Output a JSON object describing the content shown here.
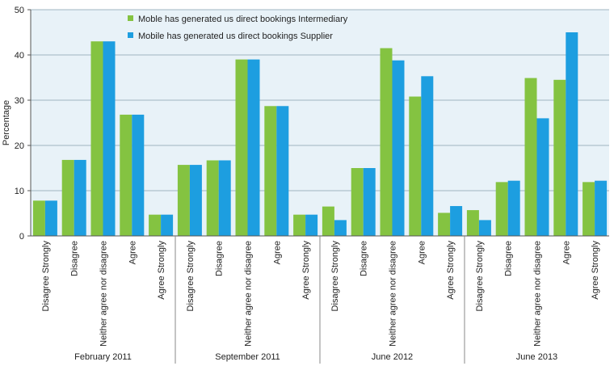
{
  "chart_data": {
    "type": "bar",
    "ylabel": "Percentage",
    "ylim": [
      0,
      50
    ],
    "yticks": [
      0,
      10,
      20,
      30,
      40,
      50
    ],
    "grid": true,
    "legend_position": "top",
    "groups": [
      {
        "label": "February 2011",
        "categories": [
          "Disagree Strongly",
          "Disagree",
          "Neither agree nor disagree",
          "Agree",
          "Agree Strongly"
        ]
      },
      {
        "label": "September 2011",
        "categories": [
          "Disagree Strongly",
          "Disagree",
          "Neither agree nor disagree",
          "Agree",
          "Agree Strongly"
        ]
      },
      {
        "label": "June 2012",
        "categories": [
          "Disagree Strongly",
          "Disagree",
          "Neither agree nor disagree",
          "Agree",
          "Agree Strongly"
        ]
      },
      {
        "label": "June 2013",
        "categories": [
          "Disagree Strongly",
          "Disagree",
          "Neither agree nor disagree",
          "Agree",
          "Agree Strongly"
        ]
      }
    ],
    "series": [
      {
        "name": "Moble has generated us direct bookings Intermediary",
        "color": "#84c341",
        "values": [
          7.8,
          16.8,
          43,
          26.8,
          4.7,
          15.7,
          16.7,
          39,
          28.7,
          4.7,
          6.5,
          15,
          41.5,
          30.8,
          5.1,
          5.7,
          11.9,
          34.9,
          34.5,
          11.9
        ]
      },
      {
        "name": "Mobile has generated us direct bookings Supplier",
        "color": "#1d9ee0",
        "values": [
          7.8,
          16.8,
          43,
          26.8,
          4.7,
          15.7,
          16.7,
          39,
          28.7,
          4.7,
          3.5,
          15,
          38.8,
          35.3,
          6.6,
          3.5,
          12.2,
          26,
          45,
          12.2
        ]
      }
    ]
  }
}
